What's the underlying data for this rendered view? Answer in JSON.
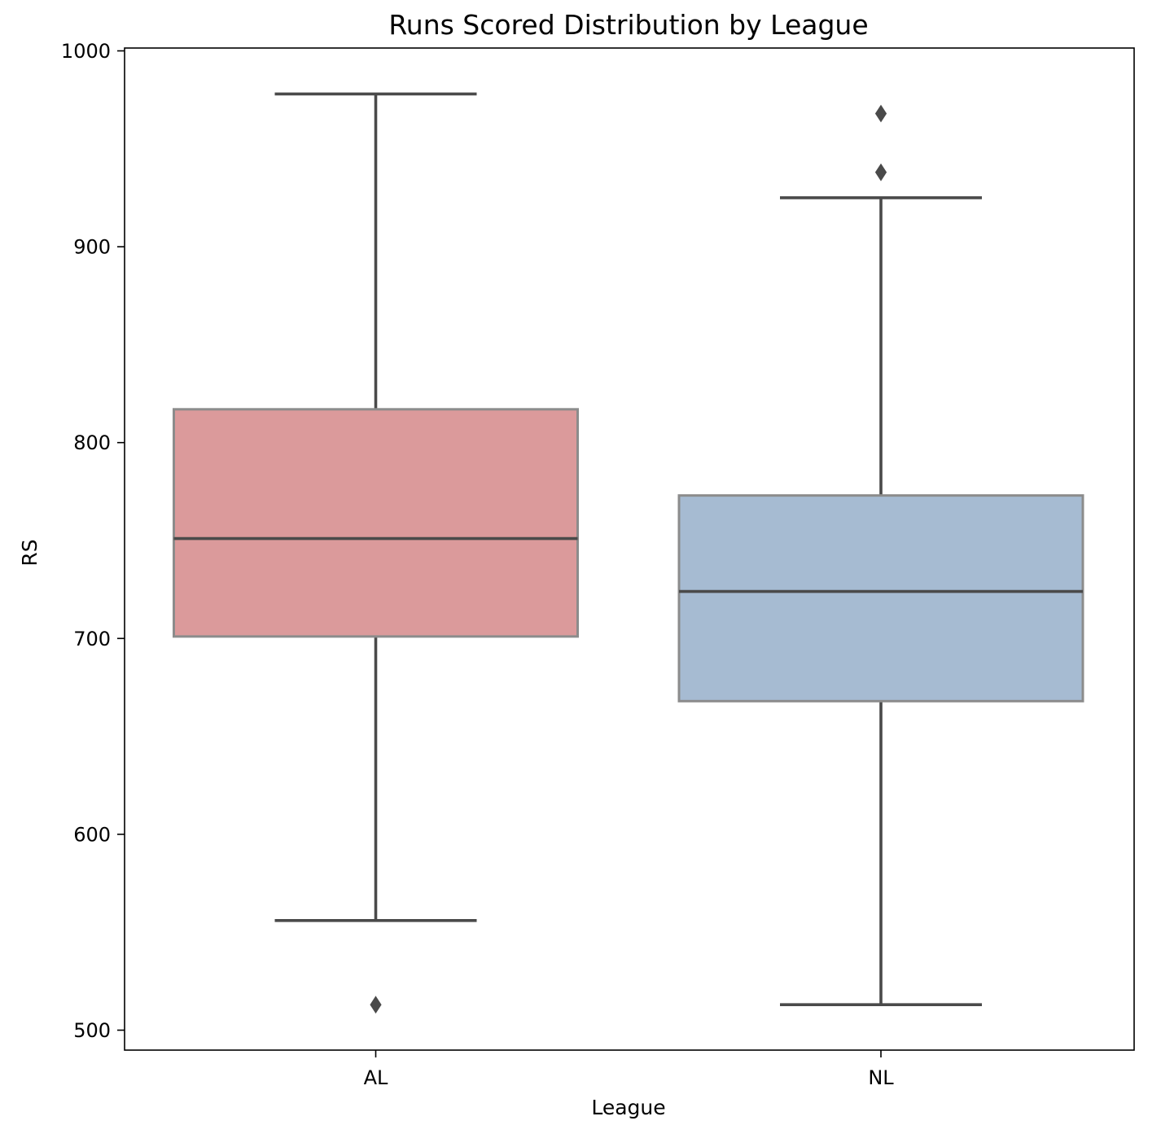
{
  "chart_data": {
    "type": "box",
    "title": "Runs Scored Distribution by League",
    "xlabel": "League",
    "ylabel": "RS",
    "categories": [
      "AL",
      "NL"
    ],
    "ylim": [
      490,
      1000
    ],
    "yticks": [
      500,
      600,
      700,
      800,
      900,
      1000
    ],
    "grid": false,
    "series": [
      {
        "name": "AL",
        "color": "#db9a9b",
        "whisker_low": 556,
        "q1": 701,
        "median": 751,
        "q3": 817,
        "whisker_high": 978,
        "outliers": [
          513
        ]
      },
      {
        "name": "NL",
        "color": "#a6bbd2",
        "whisker_low": 513,
        "q1": 668,
        "median": 724,
        "q3": 773,
        "whisker_high": 925,
        "outliers": [
          938,
          968
        ]
      }
    ],
    "line_color": "#4a4a4a",
    "box_edge_color": "#8c8c8c"
  }
}
